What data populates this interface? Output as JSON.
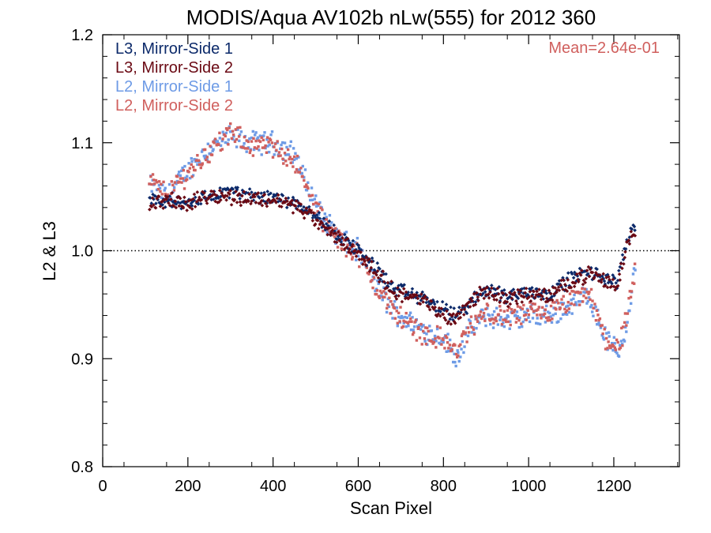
{
  "chart_data": {
    "type": "scatter",
    "title": "MODIS/Aqua AV102b nLw(555) for 2012 360",
    "xlabel": "Scan Pixel",
    "ylabel": "L2 & L3",
    "xlim": [
      0,
      1354
    ],
    "ylim": [
      0.8,
      1.2
    ],
    "xticks": [
      0,
      200,
      400,
      600,
      800,
      1000,
      1200
    ],
    "yticks": [
      0.8,
      0.9,
      1.0,
      1.1,
      1.2
    ],
    "xtick_labels": [
      "0",
      "200",
      "400",
      "600",
      "800",
      "1000",
      "1200"
    ],
    "ytick_labels": [
      "0.8",
      "0.9",
      "1.0",
      "1.1",
      "1.2"
    ],
    "reference_line": {
      "y": 1.0,
      "style": "dotted"
    },
    "annotation": {
      "text": "Mean=2.64e-01",
      "color": "#d0605e",
      "placement": "top-right"
    },
    "grid": false,
    "legend_placement": "top-left",
    "series": [
      {
        "name": "L3, Mirror-Side 1",
        "color": "#0c2a6a",
        "x": [
          110,
          150,
          200,
          250,
          300,
          350,
          400,
          450,
          480,
          520,
          560,
          600,
          640,
          680,
          720,
          760,
          800,
          830,
          860,
          900,
          950,
          1000,
          1050,
          1100,
          1140,
          1180,
          1210,
          1230,
          1250
        ],
        "y": [
          1.045,
          1.045,
          1.045,
          1.05,
          1.055,
          1.05,
          1.05,
          1.045,
          1.04,
          1.025,
          1.012,
          1.0,
          0.985,
          0.965,
          0.96,
          0.955,
          0.945,
          0.94,
          0.95,
          0.965,
          0.958,
          0.962,
          0.96,
          0.975,
          0.98,
          0.975,
          0.97,
          1.01,
          1.025
        ]
      },
      {
        "name": "L3, Mirror-Side 2",
        "color": "#6b0a14",
        "x": [
          110,
          150,
          200,
          250,
          300,
          350,
          400,
          450,
          480,
          520,
          560,
          600,
          640,
          680,
          720,
          760,
          800,
          830,
          860,
          900,
          950,
          1000,
          1050,
          1100,
          1140,
          1180,
          1210,
          1230,
          1250
        ],
        "y": [
          1.043,
          1.047,
          1.043,
          1.052,
          1.05,
          1.048,
          1.047,
          1.042,
          1.035,
          1.02,
          1.01,
          0.997,
          0.982,
          0.963,
          0.958,
          0.952,
          0.94,
          0.938,
          0.952,
          0.963,
          0.955,
          0.96,
          0.958,
          0.972,
          0.978,
          0.972,
          0.968,
          1.005,
          1.02
        ]
      },
      {
        "name": "L2, Mirror-Side 1",
        "color": "#6e9be6",
        "x": [
          110,
          150,
          200,
          250,
          300,
          350,
          400,
          450,
          480,
          520,
          560,
          600,
          640,
          680,
          720,
          760,
          800,
          830,
          860,
          900,
          950,
          1000,
          1050,
          1100,
          1140,
          1180,
          1210,
          1230,
          1250
        ],
        "y": [
          1.06,
          1.05,
          1.075,
          1.095,
          1.105,
          1.1,
          1.1,
          1.09,
          1.06,
          1.03,
          1.01,
          1.0,
          0.97,
          0.945,
          0.935,
          0.925,
          0.92,
          0.9,
          0.925,
          0.94,
          0.935,
          0.94,
          0.94,
          0.95,
          0.96,
          0.92,
          0.905,
          0.93,
          0.985
        ]
      },
      {
        "name": "L2, Mirror-Side 2",
        "color": "#d0605e",
        "x": [
          110,
          150,
          200,
          250,
          300,
          350,
          400,
          450,
          480,
          520,
          560,
          600,
          640,
          680,
          720,
          760,
          800,
          830,
          860,
          900,
          950,
          1000,
          1050,
          1100,
          1140,
          1180,
          1210,
          1230,
          1250
        ],
        "y": [
          1.065,
          1.052,
          1.072,
          1.092,
          1.108,
          1.098,
          1.095,
          1.085,
          1.055,
          1.025,
          1.008,
          0.998,
          0.968,
          0.945,
          0.932,
          0.922,
          0.918,
          0.905,
          0.928,
          0.942,
          0.938,
          0.942,
          0.942,
          0.952,
          0.962,
          0.918,
          0.91,
          0.935,
          0.98
        ]
      }
    ]
  }
}
